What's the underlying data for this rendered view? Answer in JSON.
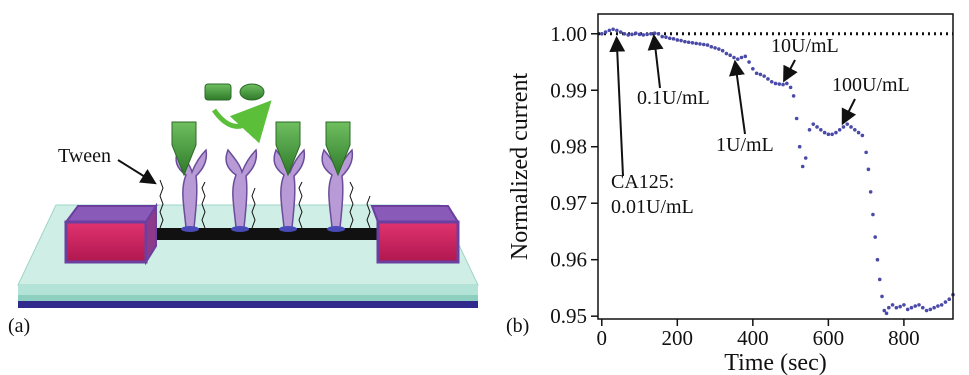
{
  "panels": {
    "a_label": "(a)",
    "b_label": "(b)"
  },
  "schematic": {
    "tween_label": "Tween",
    "colors": {
      "electrode": "#c61f5c",
      "electrode_rim": "#6a3fa0",
      "substrate_top": "#bfe6dc",
      "substrate_dark": "#2f2a8c",
      "channel": "#111111",
      "antibody": "#b89ad6",
      "probe_green": "#4f9a45",
      "arrow_green": "#5bbf3a"
    }
  },
  "chart_data": {
    "type": "line",
    "xlabel": "Time (sec)",
    "ylabel": "Normalized current",
    "xlim": [
      -10,
      930
    ],
    "ylim": [
      0.9495,
      1.0035
    ],
    "xticks": [
      0,
      200,
      400,
      600,
      800
    ],
    "yticks": [
      0.95,
      0.96,
      0.97,
      0.98,
      0.99,
      1.0
    ],
    "ytick_labels": [
      "0.95",
      "0.96",
      "0.97",
      "0.98",
      "0.99",
      "1.00"
    ],
    "xtick_labels": [
      "0",
      "200",
      "400",
      "600",
      "800"
    ],
    "baseline": {
      "y": 1.0,
      "style": "dotted"
    },
    "series": [
      {
        "color": "#4a4aa8",
        "x": [
          0,
          10,
          20,
          30,
          40,
          50,
          60,
          70,
          80,
          90,
          100,
          110,
          120,
          130,
          140,
          150,
          160,
          170,
          180,
          190,
          200,
          210,
          220,
          230,
          240,
          250,
          260,
          270,
          280,
          290,
          300,
          310,
          320,
          330,
          340,
          350,
          360,
          370,
          380,
          390,
          400,
          410,
          420,
          430,
          440,
          450,
          460,
          470,
          480,
          490,
          500,
          508,
          516,
          524,
          532,
          540,
          550,
          560,
          570,
          580,
          590,
          600,
          610,
          620,
          630,
          640,
          650,
          660,
          670,
          680,
          690,
          700,
          706,
          712,
          718,
          724,
          730,
          736,
          742,
          748,
          754,
          760,
          770,
          780,
          790,
          800,
          810,
          820,
          830,
          840,
          850,
          860,
          870,
          880,
          890,
          900,
          910,
          920,
          930
        ],
        "y": [
          1.0,
          1.0003,
          1.0006,
          1.0008,
          1.0006,
          1.0003,
          1.0,
          0.9998,
          0.9999,
          1.0001,
          0.9999,
          0.9998,
          0.9999,
          1.0,
          1.0001,
          1.0,
          0.9995,
          0.9994,
          0.9992,
          0.9991,
          0.9989,
          0.9988,
          0.9986,
          0.9985,
          0.9984,
          0.9983,
          0.9982,
          0.9981,
          0.998,
          0.9977,
          0.9975,
          0.9973,
          0.997,
          0.9965,
          0.9962,
          0.9958,
          0.9955,
          0.9958,
          0.996,
          0.995,
          0.9938,
          0.993,
          0.9928,
          0.9925,
          0.992,
          0.9915,
          0.9912,
          0.9911,
          0.991,
          0.9912,
          0.9905,
          0.989,
          0.985,
          0.98,
          0.9765,
          0.978,
          0.983,
          0.984,
          0.9835,
          0.983,
          0.9825,
          0.9822,
          0.9822,
          0.9825,
          0.983,
          0.9835,
          0.984,
          0.9835,
          0.983,
          0.9825,
          0.982,
          0.979,
          0.976,
          0.972,
          0.968,
          0.964,
          0.96,
          0.9565,
          0.9535,
          0.951,
          0.9505,
          0.9515,
          0.952,
          0.9515,
          0.9517,
          0.952,
          0.9512,
          0.9515,
          0.9518,
          0.952,
          0.9515,
          0.951,
          0.9512,
          0.9515,
          0.9518,
          0.952,
          0.9525,
          0.953,
          0.9538
        ]
      }
    ],
    "annotations": [
      {
        "text": [
          "CA125:",
          "0.01U/mL"
        ],
        "x": 40,
        "y": 1.0,
        "arrow": "up"
      },
      {
        "text": [
          "0.1U/mL"
        ],
        "x": 140,
        "y": 1.0,
        "arrow": "up"
      },
      {
        "text": [
          "1U/mL"
        ],
        "x": 355,
        "y": 0.9958,
        "arrow": "up"
      },
      {
        "text": [
          "10U/mL"
        ],
        "x": 490,
        "y": 0.9912,
        "arrow": "down"
      },
      {
        "text": [
          "100U/mL"
        ],
        "x": 645,
        "y": 0.984,
        "arrow": "down"
      }
    ]
  }
}
